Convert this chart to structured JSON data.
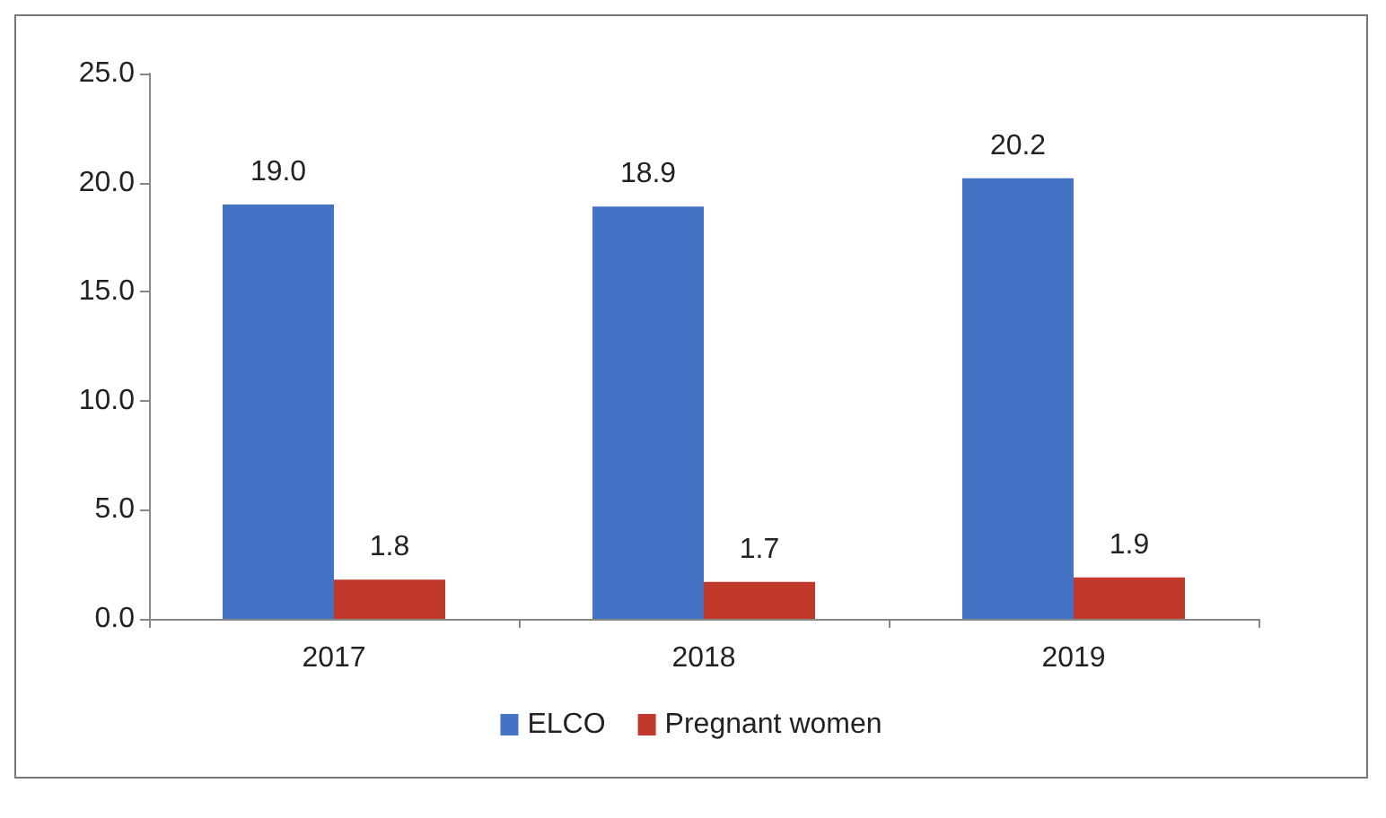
{
  "chart_data": {
    "type": "bar",
    "categories": [
      "2017",
      "2018",
      "2019"
    ],
    "series": [
      {
        "name": "ELCO",
        "color": "#4472c4",
        "values": [
          19.0,
          18.9,
          20.2
        ],
        "value_labels": [
          "19.0",
          "18.9",
          "20.2"
        ]
      },
      {
        "name": "Pregnant women",
        "color": "#c0392b",
        "values": [
          1.8,
          1.7,
          1.9
        ],
        "value_labels": [
          "1.8",
          "1.7",
          "1.9"
        ]
      }
    ],
    "ylim": [
      0,
      25
    ],
    "yticks": [
      {
        "value": 0,
        "label": "0.0"
      },
      {
        "value": 5,
        "label": "5.0"
      },
      {
        "value": 10,
        "label": "10.0"
      },
      {
        "value": 15,
        "label": "15.0"
      },
      {
        "value": 20,
        "label": "20.0"
      },
      {
        "value": 25,
        "label": "25.0"
      }
    ],
    "grid": false,
    "legend": "bottom"
  }
}
